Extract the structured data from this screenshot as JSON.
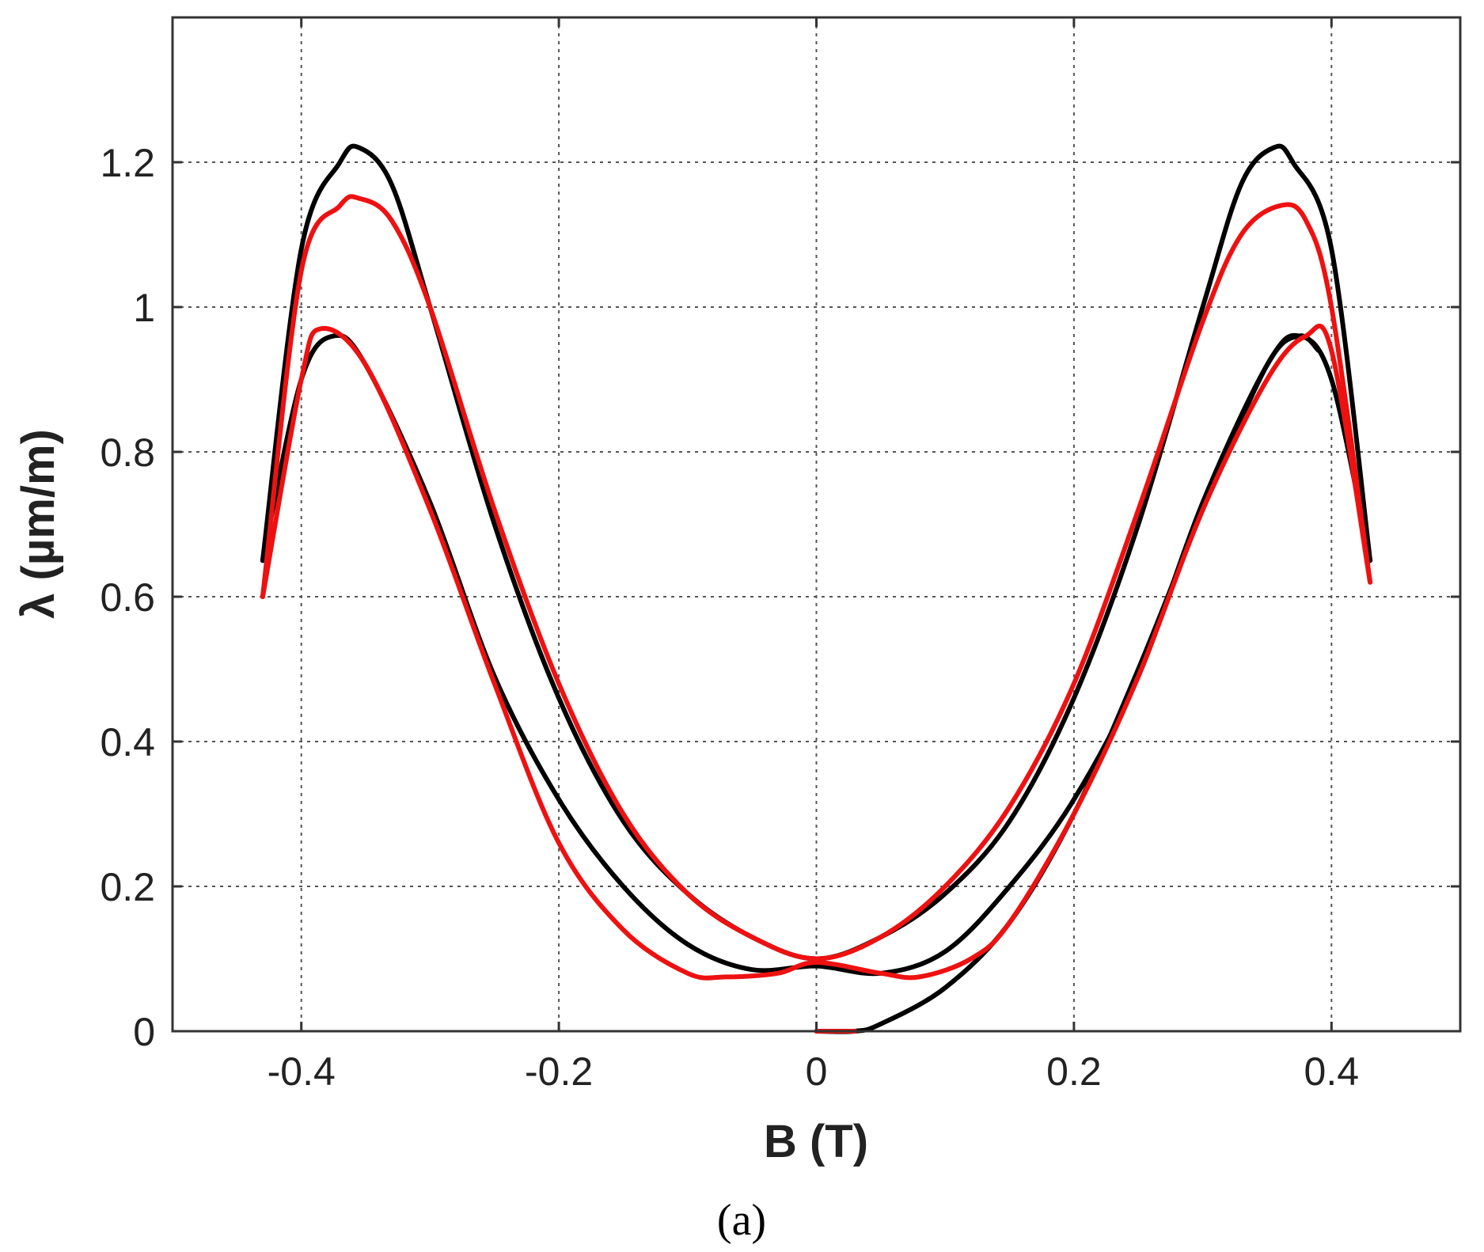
{
  "chart_data": {
    "type": "line",
    "xlabel": "B (T)",
    "ylabel": "λ (µm/m)",
    "caption": "(a)",
    "xlim": [
      -0.5,
      0.5
    ],
    "ylim": [
      0,
      1.4
    ],
    "xticks": [
      -0.4,
      -0.2,
      0,
      0.2,
      0.4
    ],
    "xtick_labels": [
      "-0.4",
      "-0.2",
      "0",
      "0.2",
      "0.4"
    ],
    "yticks": [
      0,
      0.2,
      0.4,
      0.6,
      0.8,
      1.0,
      1.2
    ],
    "ytick_labels": [
      "0",
      "0.2",
      "0.4",
      "0.6",
      "0.8",
      "1",
      "1.2"
    ],
    "grid": true,
    "colors": {
      "measured": "#000000",
      "model": "#ee1111"
    },
    "series": [
      {
        "color": "#000000",
        "points": [
          [
            -0.43,
            0.65
          ],
          [
            -0.4,
            1.08
          ],
          [
            -0.37,
            1.2
          ],
          [
            -0.355,
            1.22
          ],
          [
            -0.33,
            1.17
          ],
          [
            -0.3,
            1.0
          ],
          [
            -0.25,
            0.7
          ],
          [
            -0.2,
            0.46
          ],
          [
            -0.15,
            0.29
          ],
          [
            -0.1,
            0.19
          ],
          [
            -0.05,
            0.13
          ],
          [
            0,
            0.1
          ],
          [
            0.05,
            0.13
          ],
          [
            0.1,
            0.19
          ],
          [
            0.15,
            0.29
          ],
          [
            0.2,
            0.46
          ],
          [
            0.25,
            0.7
          ],
          [
            0.3,
            1.0
          ],
          [
            0.33,
            1.17
          ],
          [
            0.355,
            1.22
          ],
          [
            0.37,
            1.2
          ],
          [
            0.4,
            1.08
          ],
          [
            0.43,
            0.65
          ]
        ]
      },
      {
        "color": "#000000",
        "points": [
          [
            -0.43,
            0.65
          ],
          [
            -0.4,
            0.9
          ],
          [
            -0.375,
            0.96
          ],
          [
            -0.35,
            0.92
          ],
          [
            -0.3,
            0.73
          ],
          [
            -0.25,
            0.49
          ],
          [
            -0.2,
            0.32
          ],
          [
            -0.15,
            0.2
          ],
          [
            -0.1,
            0.12
          ],
          [
            -0.05,
            0.085
          ],
          [
            0,
            0.09
          ],
          [
            0.05,
            0.08
          ],
          [
            0.1,
            0.11
          ],
          [
            0.15,
            0.2
          ],
          [
            0.2,
            0.32
          ],
          [
            0.25,
            0.49
          ],
          [
            0.3,
            0.73
          ],
          [
            0.35,
            0.92
          ],
          [
            0.375,
            0.96
          ],
          [
            0.4,
            0.9
          ],
          [
            0.43,
            0.65
          ]
        ]
      },
      {
        "color": "#000000",
        "points": [
          [
            0,
            0.0
          ],
          [
            0.03,
            0.0
          ],
          [
            0.05,
            0.01
          ],
          [
            0.1,
            0.06
          ],
          [
            0.15,
            0.15
          ],
          [
            0.2,
            0.3
          ],
          [
            0.25,
            0.5
          ],
          [
            0.3,
            0.72
          ],
          [
            0.35,
            0.92
          ],
          [
            0.375,
            0.96
          ],
          [
            0.39,
            0.94
          ]
        ]
      },
      {
        "color": "#ee1111",
        "points": [
          [
            -0.43,
            0.6
          ],
          [
            -0.4,
            1.05
          ],
          [
            -0.37,
            1.14
          ],
          [
            -0.355,
            1.15
          ],
          [
            -0.33,
            1.12
          ],
          [
            -0.3,
            1.0
          ],
          [
            -0.25,
            0.72
          ],
          [
            -0.2,
            0.48
          ],
          [
            -0.15,
            0.3
          ],
          [
            -0.1,
            0.19
          ],
          [
            -0.05,
            0.13
          ],
          [
            0,
            0.1
          ],
          [
            0.05,
            0.13
          ],
          [
            0.1,
            0.2
          ],
          [
            0.15,
            0.31
          ],
          [
            0.2,
            0.48
          ],
          [
            0.25,
            0.72
          ],
          [
            0.3,
            0.98
          ],
          [
            0.33,
            1.1
          ],
          [
            0.36,
            1.14
          ],
          [
            0.38,
            1.12
          ],
          [
            0.4,
            1.0
          ],
          [
            0.43,
            0.62
          ]
        ]
      },
      {
        "color": "#ee1111",
        "points": [
          [
            -0.43,
            0.6
          ],
          [
            -0.4,
            0.9
          ],
          [
            -0.385,
            0.97
          ],
          [
            -0.35,
            0.92
          ],
          [
            -0.3,
            0.72
          ],
          [
            -0.25,
            0.48
          ],
          [
            -0.2,
            0.26
          ],
          [
            -0.15,
            0.14
          ],
          [
            -0.1,
            0.08
          ],
          [
            -0.07,
            0.075
          ],
          [
            -0.03,
            0.08
          ],
          [
            0,
            0.095
          ],
          [
            0.05,
            0.08
          ],
          [
            0.08,
            0.075
          ],
          [
            0.12,
            0.1
          ],
          [
            0.15,
            0.15
          ],
          [
            0.2,
            0.3
          ],
          [
            0.25,
            0.49
          ],
          [
            0.3,
            0.72
          ],
          [
            0.35,
            0.9
          ],
          [
            0.38,
            0.96
          ],
          [
            0.4,
            0.94
          ],
          [
            0.43,
            0.62
          ]
        ]
      },
      {
        "color": "#ee1111",
        "points": [
          [
            0,
            0.0
          ],
          [
            0.03,
            0.0
          ]
        ]
      }
    ]
  }
}
